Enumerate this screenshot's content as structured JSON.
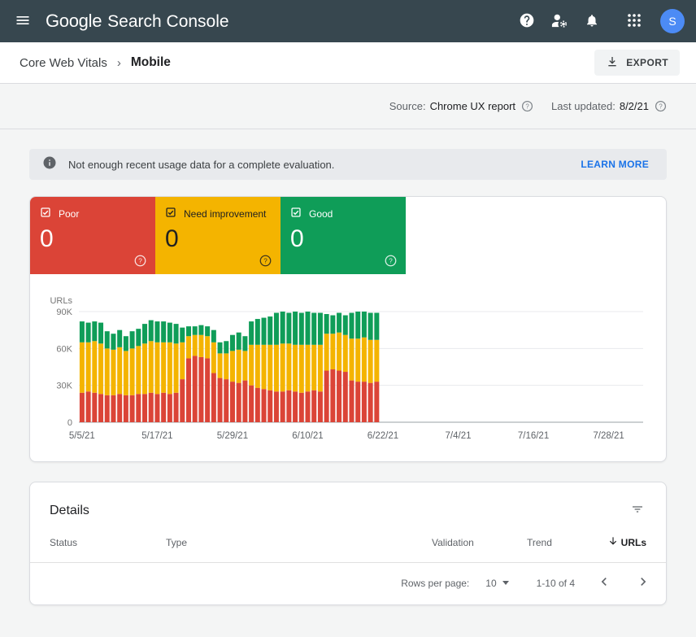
{
  "topbar": {
    "logo_google": "Google",
    "logo_product": "Search Console",
    "avatar_initial": "S"
  },
  "breadcrumb": {
    "parent": "Core Web Vitals",
    "separator": "›",
    "current": "Mobile"
  },
  "toolbar": {
    "export_label": "EXPORT"
  },
  "meta": {
    "source_label": "Source:",
    "source_value": "Chrome UX report",
    "updated_label": "Last updated:",
    "updated_value": "8/2/21"
  },
  "banner": {
    "message": "Not enough recent usage data for a complete evaluation.",
    "action_label": "LEARN MORE"
  },
  "summary_boxes": [
    {
      "label": "Poor",
      "count": "0",
      "color": "#db4437"
    },
    {
      "label": "Need improvement",
      "count": "0",
      "color": "#f4b400"
    },
    {
      "label": "Good",
      "count": "0",
      "color": "#0f9d58"
    }
  ],
  "chart_data": {
    "type": "bar",
    "stacked": true,
    "title": "",
    "ylabel": "URLs",
    "values_unit": "thousands of URLs",
    "ylim": [
      0,
      90
    ],
    "y_tick_values": [
      0,
      30,
      60,
      90
    ],
    "y_tick_labels": [
      "0",
      "30K",
      "60K",
      "90K"
    ],
    "grid": true,
    "x_axis_total_days": 90,
    "x_tick_labels": [
      "5/5/21",
      "5/17/21",
      "5/29/21",
      "6/10/21",
      "6/22/21",
      "7/4/21",
      "7/16/21",
      "7/28/21"
    ],
    "x_tick_day_index": [
      0,
      12,
      24,
      36,
      48,
      60,
      72,
      84
    ],
    "legend_position": "top-summary-boxes",
    "dates": [
      "5/5/21",
      "5/6/21",
      "5/7/21",
      "5/8/21",
      "5/9/21",
      "5/10/21",
      "5/11/21",
      "5/12/21",
      "5/13/21",
      "5/14/21",
      "5/15/21",
      "5/16/21",
      "5/17/21",
      "5/18/21",
      "5/19/21",
      "5/20/21",
      "5/21/21",
      "5/22/21",
      "5/23/21",
      "5/24/21",
      "5/25/21",
      "5/26/21",
      "5/27/21",
      "5/28/21",
      "5/29/21",
      "5/30/21",
      "5/31/21",
      "6/1/21",
      "6/2/21",
      "6/3/21",
      "6/4/21",
      "6/5/21",
      "6/6/21",
      "6/7/21",
      "6/8/21",
      "6/9/21",
      "6/10/21",
      "6/11/21",
      "6/12/21",
      "6/13/21",
      "6/14/21",
      "6/15/21",
      "6/16/21",
      "6/17/21",
      "6/18/21",
      "6/19/21",
      "6/20/21",
      "6/21/21"
    ],
    "series": [
      {
        "name": "Poor",
        "color": "#db4437",
        "values": [
          24,
          25,
          24,
          23,
          22,
          22,
          23,
          22,
          22,
          23,
          23,
          24,
          23,
          24,
          23,
          24,
          35,
          52,
          54,
          53,
          52,
          40,
          36,
          35,
          33,
          32,
          34,
          30,
          28,
          27,
          26,
          25,
          25,
          26,
          25,
          24,
          25,
          26,
          25,
          42,
          43,
          42,
          41,
          34,
          33,
          33,
          32,
          33
        ]
      },
      {
        "name": "Need improvement",
        "color": "#f4b400",
        "values": [
          41,
          40,
          42,
          41,
          38,
          37,
          38,
          36,
          38,
          39,
          41,
          42,
          42,
          41,
          42,
          40,
          30,
          18,
          17,
          18,
          18,
          25,
          20,
          21,
          25,
          27,
          24,
          33,
          35,
          36,
          37,
          38,
          39,
          38,
          38,
          39,
          38,
          37,
          38,
          30,
          29,
          31,
          30,
          34,
          35,
          36,
          35,
          34
        ]
      },
      {
        "name": "Good",
        "color": "#0f9d58",
        "values": [
          17,
          16,
          16,
          17,
          14,
          13,
          14,
          12,
          14,
          14,
          16,
          17,
          17,
          17,
          16,
          16,
          12,
          8,
          7,
          8,
          8,
          10,
          9,
          10,
          13,
          14,
          12,
          19,
          21,
          22,
          23,
          26,
          26,
          25,
          27,
          26,
          27,
          26,
          26,
          16,
          15,
          16,
          16,
          21,
          22,
          21,
          22,
          22
        ]
      }
    ]
  },
  "details": {
    "title": "Details",
    "columns": [
      "Status",
      "Type",
      "Validation",
      "Trend",
      "URLs"
    ],
    "pagination": {
      "rows_per_page_label": "Rows per page:",
      "rows_per_page_value": "10",
      "range": "1-10 of 4"
    }
  },
  "colors": {
    "topbar_bg": "#37474f",
    "accent_link": "#1a73e8",
    "avatar_bg": "#4c8bf5",
    "banner_bg": "#e8eaed",
    "page_bg": "#f4f5f5"
  },
  "icons": {
    "menu-icon": "hamburger-bars",
    "help-icon": "question-in-filled-circle",
    "user-settings-icon": "person-with-gear",
    "notifications-icon": "bell",
    "apps-grid-icon": "3x3-dot-grid",
    "download-icon": "arrow-down-into-tray",
    "info-icon": "info-filled-circle",
    "checkbox-checked-icon": "checked-checkbox",
    "help-outline-icon": "question-circle-outline",
    "filter-icon": "filter-lines",
    "sort-desc-icon": "arrow-down",
    "caret-down-icon": "triangle-down",
    "chevron-left-icon": "angle-left",
    "chevron-right-icon": "angle-right"
  }
}
